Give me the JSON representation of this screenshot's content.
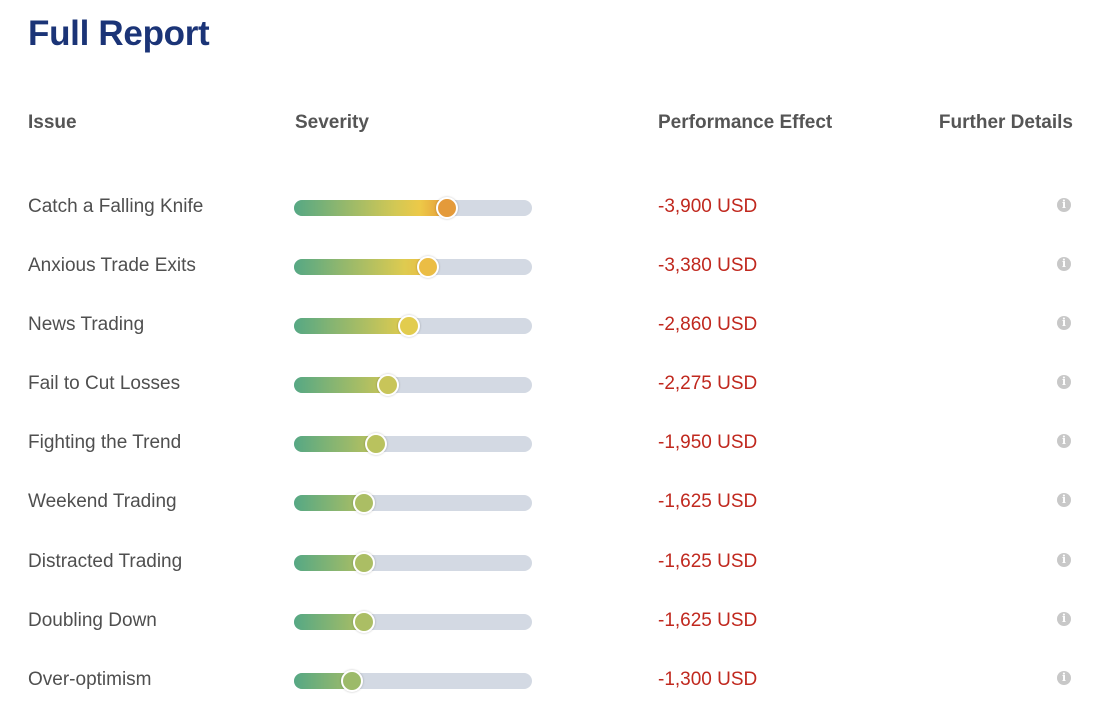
{
  "title": "Full Report",
  "headers": {
    "issue": "Issue",
    "severity": "Severity",
    "performance": "Performance Effect",
    "details": "Further Details"
  },
  "colors": {
    "title": "#1b3477",
    "effect": "#c0281e",
    "low": "#56a884",
    "mid": "#eecf4a",
    "high": "#e49a3a",
    "track": "#d3d9e3"
  },
  "rows": [
    {
      "issue": "Catch a Falling Knife",
      "severity": 0.64,
      "effect": "-3,900 USD",
      "info_icon": "info-icon"
    },
    {
      "issue": "Anxious Trade Exits",
      "severity": 0.56,
      "effect": "-3,380 USD",
      "info_icon": "info-icon"
    },
    {
      "issue": "News Trading",
      "severity": 0.48,
      "effect": "-2,860 USD",
      "info_icon": "info-icon"
    },
    {
      "issue": "Fail to Cut Losses",
      "severity": 0.39,
      "effect": "-2,275 USD",
      "info_icon": "info-icon"
    },
    {
      "issue": "Fighting the Trend",
      "severity": 0.34,
      "effect": "-1,950 USD",
      "info_icon": "info-icon"
    },
    {
      "issue": "Weekend Trading",
      "severity": 0.29,
      "effect": "-1,625 USD",
      "info_icon": "info-icon"
    },
    {
      "issue": "Distracted Trading",
      "severity": 0.29,
      "effect": "-1,625 USD",
      "info_icon": "info-icon"
    },
    {
      "issue": "Doubling Down",
      "severity": 0.29,
      "effect": "-1,625 USD",
      "info_icon": "info-icon"
    },
    {
      "issue": "Over-optimism",
      "severity": 0.24,
      "effect": "-1,300 USD",
      "info_icon": "info-icon"
    }
  ]
}
